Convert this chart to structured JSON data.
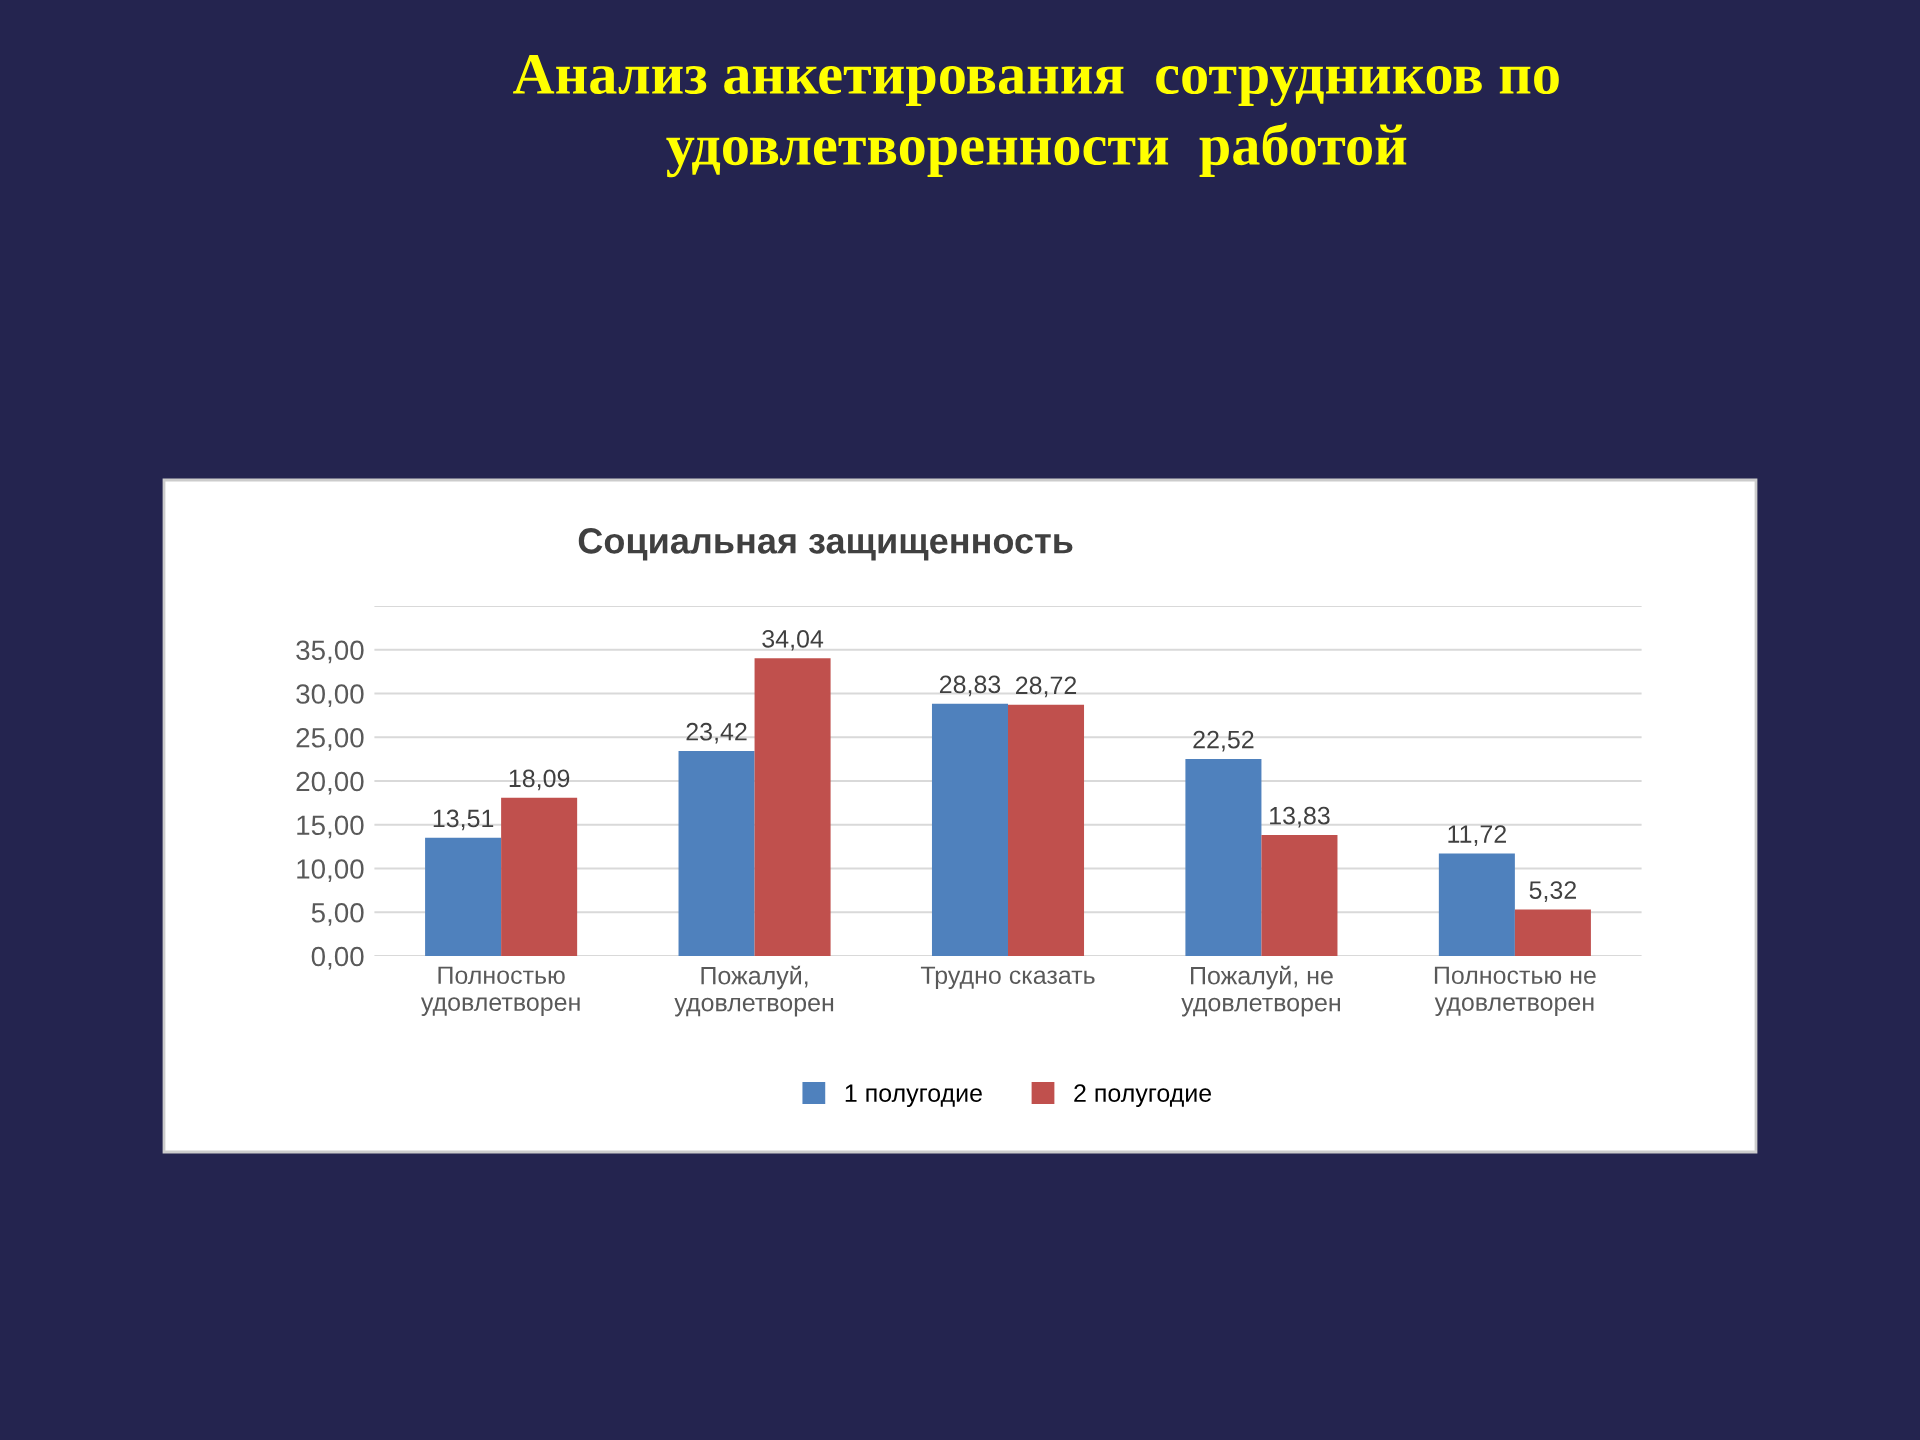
{
  "chart_data": {
    "type": "bar",
    "title": "Анализ анкетирования  сотрудников по\nудовлетворенности  работой",
    "subtitle": "Социальная защищенность",
    "categories": [
      "Полностью\nудовлетворен",
      "Пожалуй,\nудовлетворен",
      "Трудно сказать",
      "Пожалуй, не\nудовлетворен",
      "Полностью не\nудовлетворен"
    ],
    "series": [
      {
        "name": "1 полугодие",
        "color": "#4f81bd",
        "values": [
          13.51,
          23.42,
          28.83,
          22.52,
          11.72
        ],
        "value_labels": [
          "13,51",
          "23,42",
          "28,83",
          "22,52",
          "11,72"
        ]
      },
      {
        "name": "2 полугодие",
        "color": "#c0504d",
        "values": [
          18.09,
          34.04,
          28.72,
          13.83,
          5.32
        ],
        "value_labels": [
          "18,09",
          "34,04",
          "28,72",
          "13,83",
          "5,32"
        ]
      }
    ],
    "ylim": [
      0,
      40
    ],
    "yticks": [
      {
        "value": 0,
        "label": "0,00"
      },
      {
        "value": 5,
        "label": "5,00"
      },
      {
        "value": 10,
        "label": "10,00"
      },
      {
        "value": 15,
        "label": "15,00"
      },
      {
        "value": 20,
        "label": "20,00"
      },
      {
        "value": 25,
        "label": "25,00"
      },
      {
        "value": 30,
        "label": "30,00"
      },
      {
        "value": 35,
        "label": "35,00"
      },
      {
        "value": 40,
        "label": null
      }
    ],
    "grid": "y",
    "legend": "bottom"
  }
}
